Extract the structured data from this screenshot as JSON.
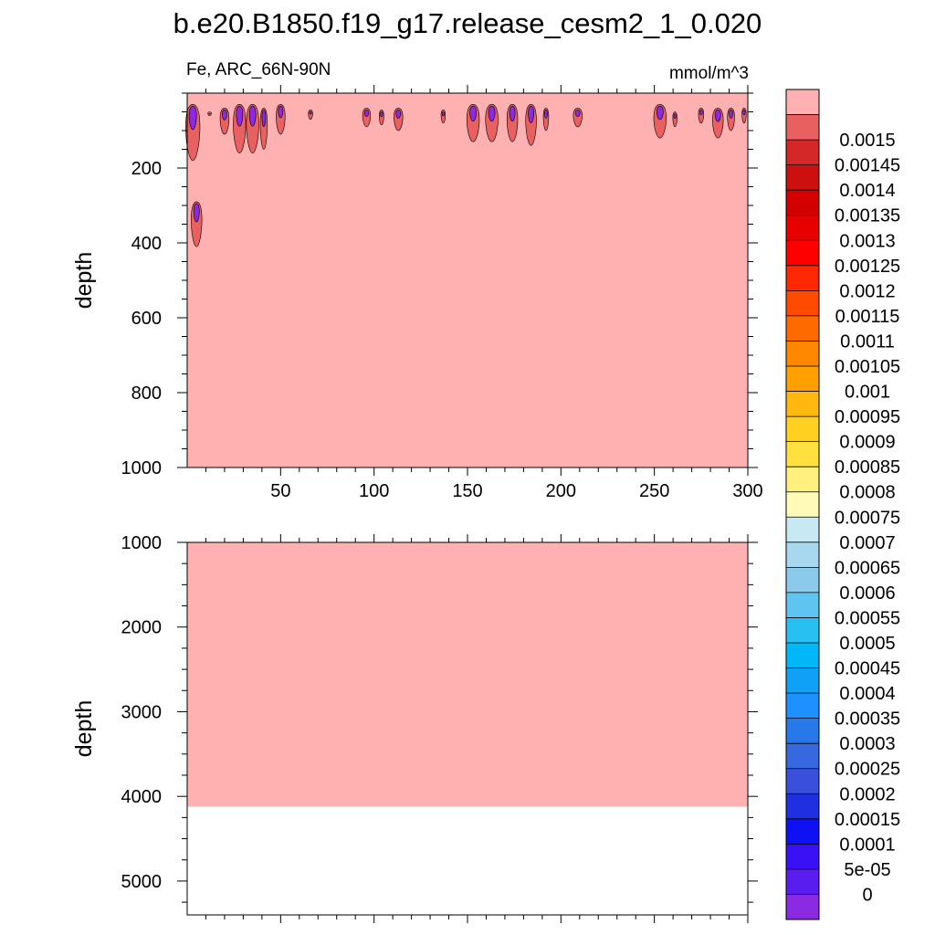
{
  "chart_data": {
    "type": "heatmap",
    "title": "b.e20.B1850.f19_g17.release_cesm2_1_0.020",
    "variable_label": "Fe, ARC_66N-90N",
    "units_label": "mmol/m^3",
    "background_fill_color": "#ffb0b0",
    "panels": [
      {
        "ylabel": "depth",
        "xlim": [
          0,
          300
        ],
        "ylim": [
          1000,
          0
        ],
        "y_reversed": true,
        "xticks": [
          50,
          100,
          150,
          200,
          250,
          300
        ],
        "xtick_labels": [
          "50",
          "100",
          "150",
          "200",
          "250",
          "300"
        ],
        "yticks": [
          200,
          400,
          600,
          800,
          1000
        ],
        "ytick_labels": [
          "200",
          "400",
          "600",
          "800",
          "1000"
        ],
        "filled_to_depth": 1000,
        "features": [
          {
            "x": 3,
            "ymin": 30,
            "ymax": 180,
            "halfwidth": 4,
            "max_level": 0.00145
          },
          {
            "x": 5,
            "ymin": 290,
            "ymax": 410,
            "halfwidth": 3,
            "max_level": 0.0015
          },
          {
            "x": 12,
            "ymin": 50,
            "ymax": 60,
            "halfwidth": 0.8,
            "max_level": 0.0015
          },
          {
            "x": 20,
            "ymin": 40,
            "ymax": 110,
            "halfwidth": 2.5,
            "max_level": 0.0015
          },
          {
            "x": 28,
            "ymin": 30,
            "ymax": 160,
            "halfwidth": 3.5,
            "max_level": 0.00145
          },
          {
            "x": 35,
            "ymin": 30,
            "ymax": 160,
            "halfwidth": 3.5,
            "max_level": 0.00145
          },
          {
            "x": 41,
            "ymin": 40,
            "ymax": 150,
            "halfwidth": 2,
            "max_level": 0.0015
          },
          {
            "x": 50,
            "ymin": 30,
            "ymax": 110,
            "halfwidth": 2.5,
            "max_level": 0.0014
          },
          {
            "x": 66,
            "ymin": 45,
            "ymax": 70,
            "halfwidth": 1.2,
            "max_level": 0.0015
          },
          {
            "x": 96,
            "ymin": 40,
            "ymax": 90,
            "halfwidth": 2.2,
            "max_level": 0.0015
          },
          {
            "x": 104,
            "ymin": 45,
            "ymax": 85,
            "halfwidth": 1.3,
            "max_level": 0.0015
          },
          {
            "x": 113,
            "ymin": 40,
            "ymax": 100,
            "halfwidth": 2.5,
            "max_level": 0.00145
          },
          {
            "x": 137,
            "ymin": 45,
            "ymax": 80,
            "halfwidth": 1.2,
            "max_level": 0.0015
          },
          {
            "x": 153,
            "ymin": 30,
            "ymax": 130,
            "halfwidth": 3.5,
            "max_level": 0.00145
          },
          {
            "x": 163,
            "ymin": 30,
            "ymax": 130,
            "halfwidth": 3.5,
            "max_level": 0.0014
          },
          {
            "x": 174,
            "ymin": 30,
            "ymax": 130,
            "halfwidth": 3,
            "max_level": 0.0014
          },
          {
            "x": 184,
            "ymin": 30,
            "ymax": 140,
            "halfwidth": 3,
            "max_level": 0.0014
          },
          {
            "x": 192,
            "ymin": 40,
            "ymax": 100,
            "halfwidth": 1.5,
            "max_level": 0.0015
          },
          {
            "x": 209,
            "ymin": 40,
            "ymax": 90,
            "halfwidth": 2.5,
            "max_level": 0.00145
          },
          {
            "x": 253,
            "ymin": 30,
            "ymax": 120,
            "halfwidth": 3.5,
            "max_level": 0.00145
          },
          {
            "x": 261,
            "ymin": 50,
            "ymax": 90,
            "halfwidth": 1.2,
            "max_level": 0.0015
          },
          {
            "x": 275,
            "ymin": 40,
            "ymax": 80,
            "halfwidth": 1.5,
            "max_level": 0.0015
          },
          {
            "x": 284,
            "ymin": 40,
            "ymax": 120,
            "halfwidth": 3,
            "max_level": 0.00145
          },
          {
            "x": 291,
            "ymin": 40,
            "ymax": 100,
            "halfwidth": 2,
            "max_level": 0.0015
          },
          {
            "x": 298,
            "ymin": 40,
            "ymax": 80,
            "halfwidth": 1.2,
            "max_level": 0.0015
          }
        ]
      },
      {
        "ylabel": "depth",
        "xlim": [
          0,
          300
        ],
        "ylim": [
          5400,
          1000
        ],
        "y_reversed": true,
        "xticks": [
          50,
          100,
          150,
          200,
          250,
          300
        ],
        "xtick_labels": [
          "",
          "",
          "",
          "",
          "",
          ""
        ],
        "yticks": [
          1000,
          2000,
          3000,
          4000,
          5000
        ],
        "ytick_labels": [
          "1000",
          "2000",
          "3000",
          "4000",
          "5000"
        ],
        "filled_to_depth": 4120,
        "features": []
      }
    ],
    "colorbar": {
      "levels": [
        "0",
        "5e-05",
        "0.0001",
        "0.00015",
        "0.0002",
        "0.00025",
        "0.0003",
        "0.00035",
        "0.0004",
        "0.00045",
        "0.0005",
        "0.00055",
        "0.0006",
        "0.00065",
        "0.0007",
        "0.00075",
        "0.0008",
        "0.00085",
        "0.0009",
        "0.00095",
        "0.001",
        "0.00105",
        "0.0011",
        "0.00115",
        "0.0012",
        "0.00125",
        "0.0013",
        "0.00135",
        "0.0014",
        "0.00145",
        "0.0015"
      ],
      "colors": [
        "#8a2be2",
        "#5a1df0",
        "#3a10f5",
        "#1010f5",
        "#2030e0",
        "#3a4fdc",
        "#3868e0",
        "#2878e8",
        "#1e90ff",
        "#10a0f5",
        "#00b8f8",
        "#28c0f0",
        "#60c4f0",
        "#8ccaec",
        "#a8d8f0",
        "#c8e8f4",
        "#fffab8",
        "#fff080",
        "#ffe040",
        "#ffd020",
        "#ffb810",
        "#ffa000",
        "#ff8800",
        "#ff6a00",
        "#ff4a00",
        "#ff2800",
        "#ff0000",
        "#e80000",
        "#d40000",
        "#cc1010",
        "#d42828",
        "#e86060",
        "#ffb0b0"
      ]
    }
  }
}
